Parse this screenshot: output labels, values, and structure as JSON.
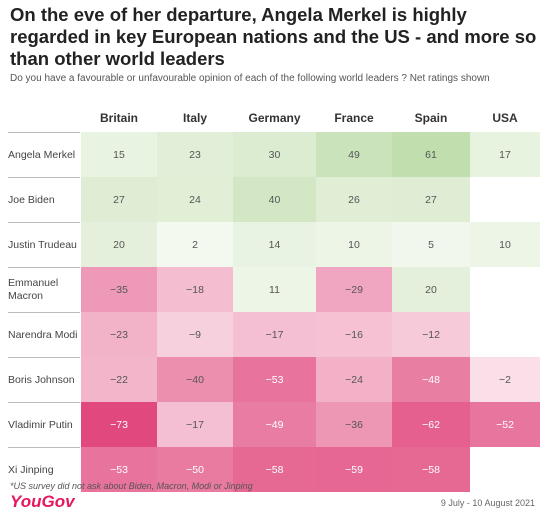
{
  "title": "On the eve of her departure, Angela Merkel is highly regarded in key European nations and the US - and more so than other world leaders",
  "subtitle": "Do you have a favourable or unfavourable opinion of each of the following world leaders ? Net ratings shown",
  "footnote": "*US survey did not ask about Biden, Macron, Modi or Jinping",
  "brand": "YouGov",
  "date_range": "9 July - 10 August 2021",
  "chart_data": {
    "type": "heatmap",
    "columns": [
      "Britain",
      "Italy",
      "Germany",
      "France",
      "Spain",
      "USA"
    ],
    "rows": [
      {
        "label": "Angela Merkel",
        "values": [
          15,
          23,
          30,
          49,
          61,
          17
        ]
      },
      {
        "label": "Joe Biden",
        "values": [
          27,
          24,
          40,
          26,
          27,
          null
        ]
      },
      {
        "label": "Justin Trudeau",
        "values": [
          20,
          2,
          14,
          10,
          5,
          10
        ]
      },
      {
        "label": "Emmanuel Macron",
        "values": [
          -35,
          -18,
          11,
          -29,
          20,
          null
        ]
      },
      {
        "label": "Narendra Modi",
        "values": [
          -23,
          -9,
          -17,
          -16,
          -12,
          null
        ]
      },
      {
        "label": "Boris Johnson",
        "values": [
          -22,
          -40,
          -53,
          -24,
          -48,
          -2
        ]
      },
      {
        "label": "Vladimir Putin",
        "values": [
          -73,
          -17,
          -49,
          -36,
          -62,
          -52
        ]
      },
      {
        "label": "Xi Jinping",
        "values": [
          -53,
          -50,
          -58,
          -59,
          -58,
          null
        ]
      }
    ],
    "colors": {
      "positive": "#a8d08d",
      "negative": "#e0457b",
      "neutral": "#ffffff"
    }
  }
}
